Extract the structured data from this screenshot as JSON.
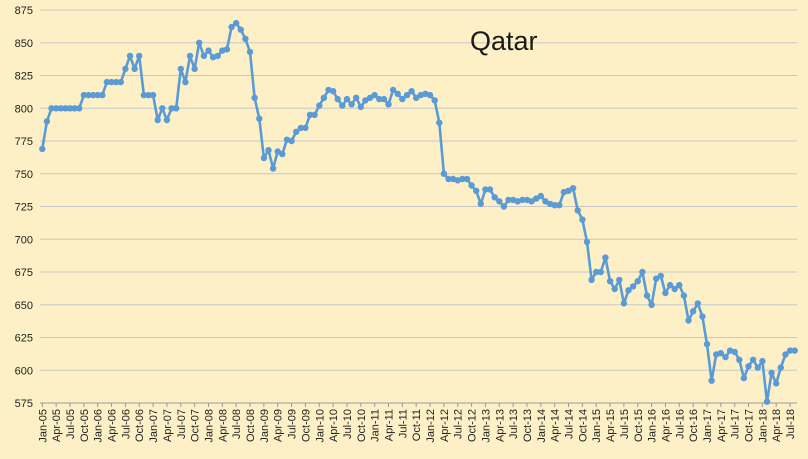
{
  "chart_data": {
    "type": "line",
    "title": "Qatar",
    "xlabel": "",
    "ylabel": "",
    "ylim": [
      575,
      875
    ],
    "y_ticks": [
      575,
      600,
      625,
      650,
      675,
      700,
      725,
      750,
      775,
      800,
      825,
      850,
      875
    ],
    "grid": "horizontal",
    "legend": "none",
    "start": "2005-01",
    "tick_labels": [
      "Jan-05",
      "Apr-05",
      "Jul-05",
      "Oct-05",
      "Jan-06",
      "Apr-06",
      "Jul-06",
      "Oct-06",
      "Jan-07",
      "Apr-07",
      "Jul-07",
      "Oct-07",
      "Jan-08",
      "Apr-08",
      "Jul-08",
      "Oct-08",
      "Jan-09",
      "Apr-09",
      "Jul-09",
      "Oct-09",
      "Jan-10",
      "Apr-10",
      "Jul-10",
      "Oct-10",
      "Jan-11",
      "Apr-11",
      "Jul-11",
      "Oct-11",
      "Jan-12",
      "Apr-12",
      "Jul-12",
      "Oct-12",
      "Jan-13",
      "Apr-13",
      "Jul-13",
      "Oct-13",
      "Jan-14",
      "Apr-14",
      "Jul-14",
      "Oct-14",
      "Jan-15",
      "Apr-15",
      "Jul-15",
      "Oct-15",
      "Jan-16",
      "Apr-16",
      "Jul-16",
      "Oct-16",
      "Jan-17",
      "Apr-17",
      "Jul-17",
      "Oct-17",
      "Jan-18",
      "Apr-18",
      "Jul-18"
    ],
    "series": [
      {
        "color": "#5b9bd5",
        "values": [
          769,
          790,
          800,
          800,
          800,
          800,
          800,
          800,
          800,
          810,
          810,
          810,
          810,
          810,
          820,
          820,
          820,
          820,
          830,
          840,
          830,
          840,
          810,
          810,
          810,
          791,
          800,
          791,
          800,
          800,
          830,
          820,
          840,
          830,
          850,
          840,
          844,
          839,
          840,
          844,
          845,
          862,
          865,
          860,
          853,
          843,
          808,
          792,
          762,
          768,
          754,
          767,
          765,
          776,
          775,
          782,
          785,
          785,
          795,
          795,
          802,
          808,
          814,
          813,
          807,
          802,
          807,
          803,
          808,
          801,
          806,
          808,
          810,
          807,
          807,
          803,
          814,
          811,
          807,
          810,
          813,
          808,
          810,
          811,
          810,
          806,
          789,
          750,
          746,
          746,
          745,
          746,
          746,
          741,
          737,
          727,
          738,
          738,
          732,
          729,
          725,
          730,
          730,
          729,
          730,
          730,
          729,
          731,
          733,
          729,
          727,
          726,
          726,
          736,
          737,
          739,
          722,
          715,
          698,
          669,
          675,
          675,
          686,
          668,
          662,
          669,
          651,
          661,
          664,
          668,
          675,
          657,
          650,
          670,
          672,
          659,
          665,
          662,
          665,
          657,
          638,
          645,
          651,
          641,
          620,
          592,
          612,
          613,
          610,
          615,
          614,
          608,
          594,
          603,
          608,
          602,
          607,
          576,
          598,
          590,
          602,
          612,
          615,
          615
        ]
      }
    ]
  }
}
